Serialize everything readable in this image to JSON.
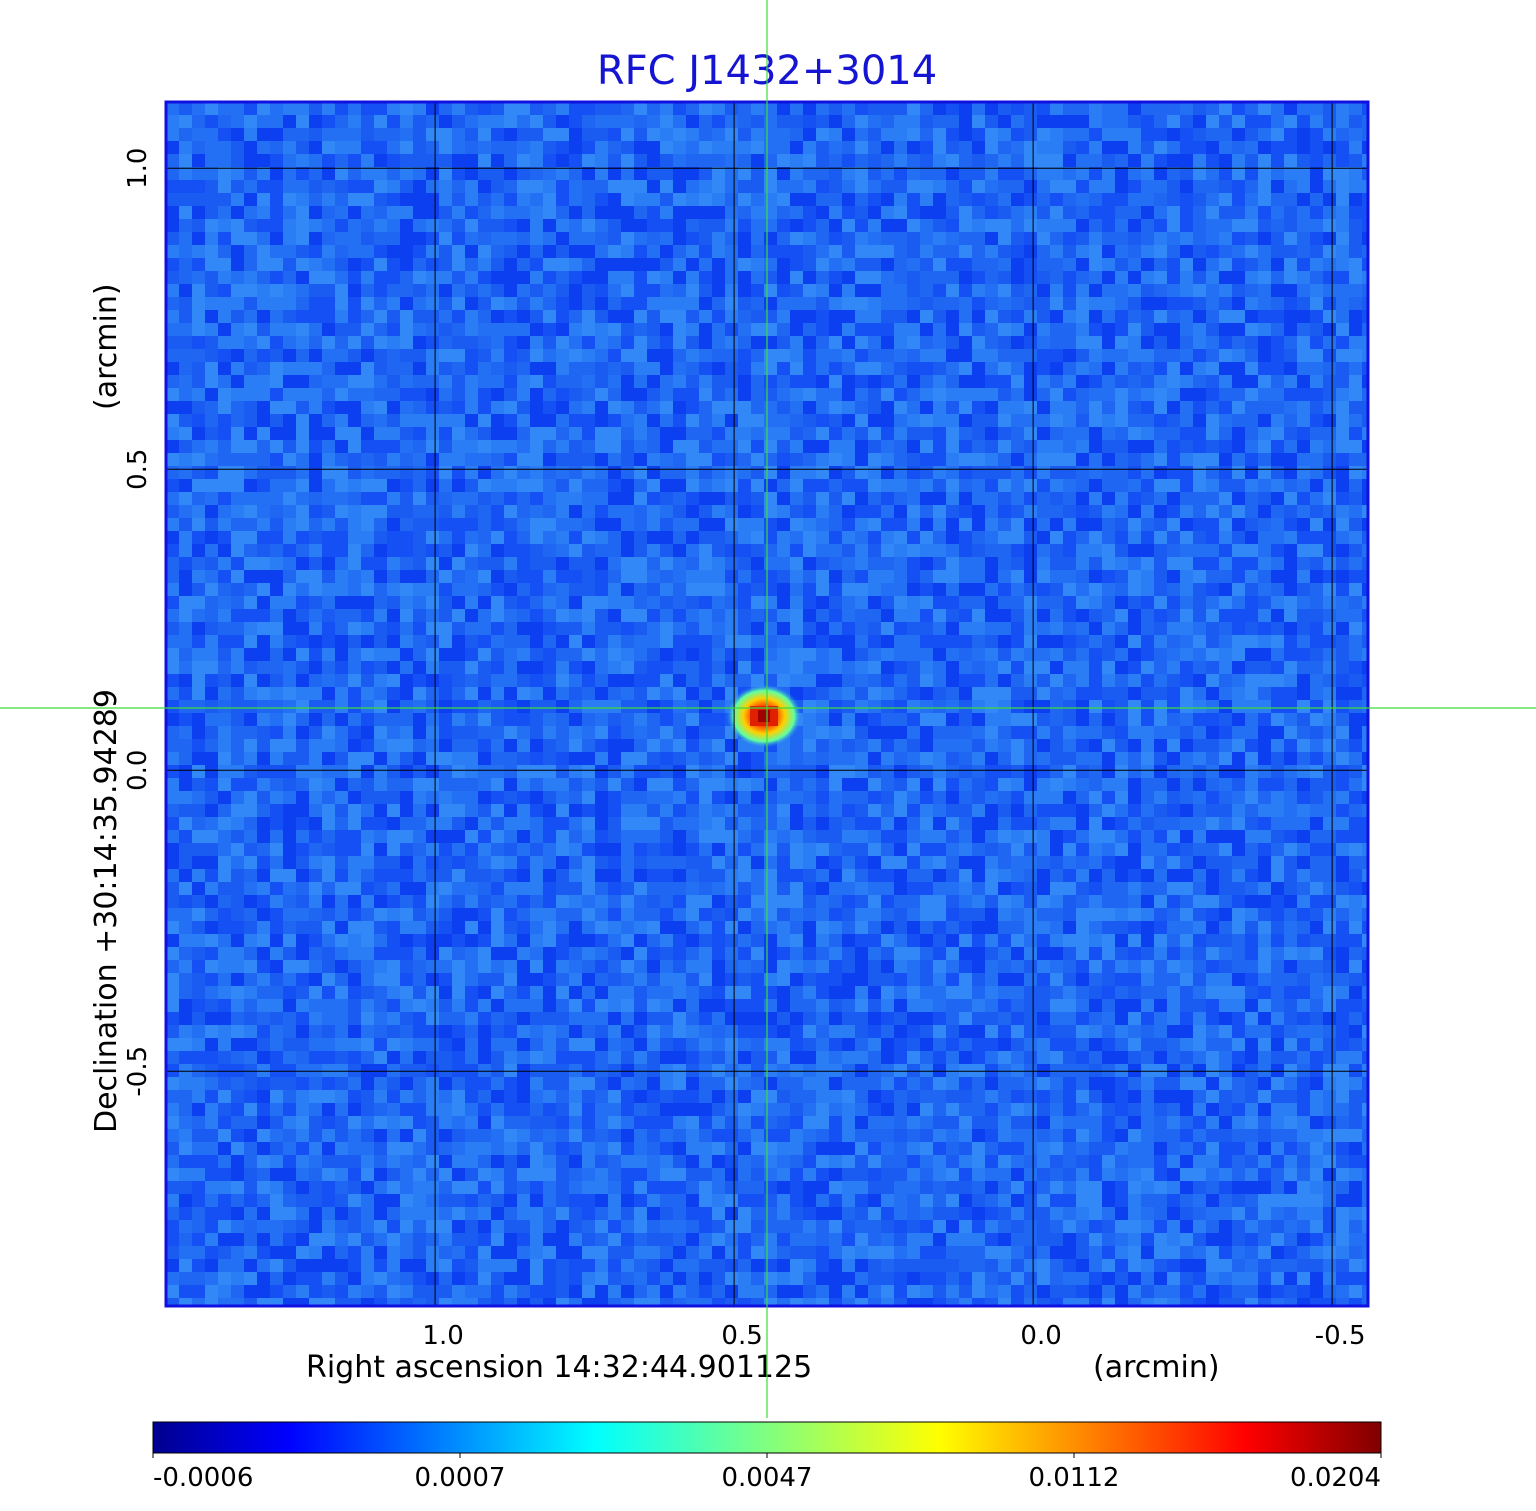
{
  "chart_data": {
    "type": "heatmap",
    "title": "RFC J1432+3014",
    "x_axis": {
      "label": "Right ascension  14:32:44.901125",
      "unit_label": "(arcmin)",
      "range": [
        1.45,
        -0.56
      ],
      "ticks": [
        {
          "value": 1.0,
          "label": "1.0"
        },
        {
          "value": 0.5,
          "label": "0.5"
        },
        {
          "value": 0.0,
          "label": "0.0"
        },
        {
          "value": -0.5,
          "label": "-0.5"
        }
      ]
    },
    "y_axis": {
      "label": "Declination  +30:14:35.94289",
      "unit_label": "(arcmin)",
      "range": [
        -0.89,
        1.11
      ],
      "ticks": [
        {
          "value": 1.0,
          "label": "1.0"
        },
        {
          "value": 0.5,
          "label": "0.5"
        },
        {
          "value": 0.0,
          "label": "0.0"
        },
        {
          "value": -0.5,
          "label": "-0.5"
        }
      ]
    },
    "grid": true,
    "crosshair": {
      "x": 0.45,
      "y": 0.1
    },
    "source_peak": {
      "x": 0.45,
      "y": 0.09,
      "value": 0.0204
    },
    "colorbar": {
      "colormap": "jet",
      "tick_labels": [
        "-0.0006",
        "0.0007",
        "0.0047",
        "0.0112",
        "0.0204"
      ],
      "min": -0.0006,
      "max": 0.0204
    }
  },
  "colors": {
    "title": "#1414d2",
    "frame": "#1010e0",
    "crosshair": "#3cdc3c",
    "grid": "#000000"
  }
}
